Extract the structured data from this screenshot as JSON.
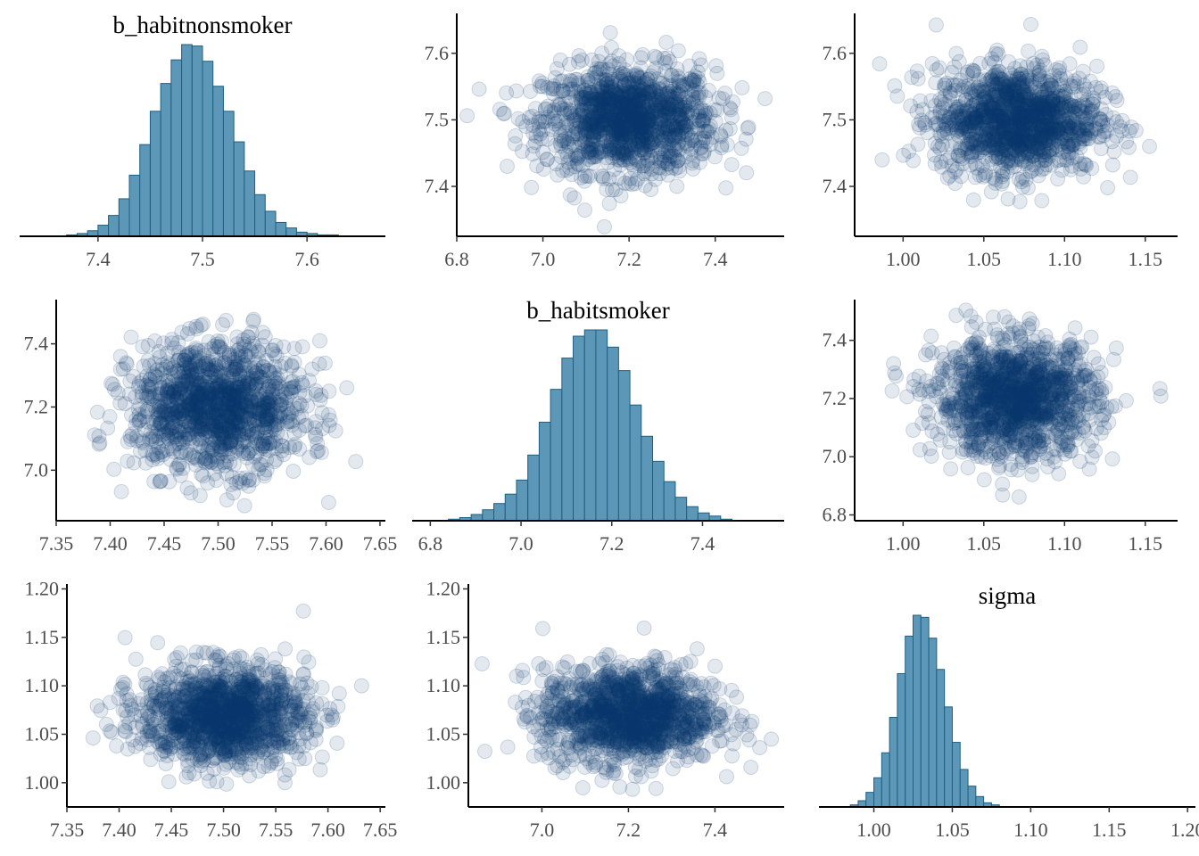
{
  "figure": {
    "type": "pairs_plot",
    "variables": [
      "b_habitnonsmoker",
      "b_habitsmoker",
      "sigma"
    ]
  },
  "colors": {
    "hist_fill": "#5c97b7",
    "hist_edge": "#1f5f82",
    "point": "#0b3b70",
    "axis": "#000000",
    "tick_text": "#4d4d4d"
  },
  "chart_data": [
    {
      "id": "p11",
      "type": "bar",
      "title": "b_habitnonsmoker",
      "xlim": [
        7.325,
        7.675
      ],
      "xticks": [
        "7.4",
        "7.5",
        "7.6"
      ],
      "bin_start": 7.37,
      "bin_width": 0.01,
      "values": [
        1,
        2,
        4,
        8,
        15,
        27,
        44,
        66,
        90,
        110,
        127,
        138,
        137,
        126,
        108,
        90,
        68,
        47,
        30,
        18,
        10,
        6,
        3,
        2,
        1,
        1
      ]
    },
    {
      "id": "p12",
      "type": "scatter",
      "x_var": "b_habitsmoker",
      "y_var": "b_habitnonsmoker",
      "xlim": [
        6.8,
        7.56
      ],
      "ylim": [
        7.325,
        7.66
      ],
      "xticks": [
        "6.8",
        "7.0",
        "7.2",
        "7.4"
      ],
      "yticks": [
        "7.4",
        "7.5",
        "7.6"
      ],
      "center": [
        7.2,
        7.5
      ],
      "sd": [
        0.1,
        0.04
      ]
    },
    {
      "id": "p13",
      "type": "scatter",
      "x_var": "sigma",
      "y_var": "b_habitnonsmoker",
      "xlim": [
        0.97,
        1.17
      ],
      "ylim": [
        7.325,
        7.66
      ],
      "xticks": [
        "1.00",
        "1.05",
        "1.10",
        "1.15"
      ],
      "yticks": [
        "7.4",
        "7.5",
        "7.6"
      ],
      "center": [
        1.07,
        7.5
      ],
      "sd": [
        0.025,
        0.04
      ]
    },
    {
      "id": "p21",
      "type": "scatter",
      "x_var": "b_habitnonsmoker",
      "y_var": "b_habitsmoker",
      "xlim": [
        7.35,
        7.655
      ],
      "ylim": [
        6.84,
        7.54
      ],
      "xticks": [
        "7.35",
        "7.40",
        "7.45",
        "7.50",
        "7.55",
        "7.60",
        "7.65"
      ],
      "yticks": [
        "7.0",
        "7.2",
        "7.4"
      ],
      "center": [
        7.5,
        7.2
      ],
      "sd": [
        0.04,
        0.1
      ]
    },
    {
      "id": "p22",
      "type": "bar",
      "title": "b_habitsmoker",
      "xlim": [
        6.76,
        7.58
      ],
      "xticks": [
        "6.8",
        "7.0",
        "7.2",
        "7.4"
      ],
      "bin_start": 6.84,
      "bin_width": 0.025,
      "values": [
        1,
        2,
        4,
        7,
        11,
        17,
        26,
        42,
        63,
        84,
        104,
        118,
        122,
        122,
        111,
        96,
        74,
        54,
        38,
        25,
        15,
        9,
        5,
        3,
        1
      ]
    },
    {
      "id": "p23",
      "type": "scatter",
      "x_var": "sigma",
      "y_var": "b_habitsmoker",
      "xlim": [
        0.97,
        1.17
      ],
      "ylim": [
        6.78,
        7.54
      ],
      "xticks": [
        "1.00",
        "1.05",
        "1.10",
        "1.15"
      ],
      "yticks": [
        "6.8",
        "7.0",
        "7.2",
        "7.4"
      ],
      "center": [
        1.07,
        7.2
      ],
      "sd": [
        0.025,
        0.1
      ]
    },
    {
      "id": "p31",
      "type": "scatter",
      "x_var": "b_habitnonsmoker",
      "y_var": "sigma",
      "xlim": [
        7.35,
        7.655
      ],
      "ylim": [
        0.975,
        1.205
      ],
      "xticks": [
        "7.35",
        "7.40",
        "7.45",
        "7.50",
        "7.55",
        "7.60",
        "7.65"
      ],
      "yticks": [
        "1.00",
        "1.05",
        "1.10",
        "1.15",
        "1.20"
      ],
      "center": [
        7.5,
        1.07
      ],
      "sd": [
        0.04,
        0.025
      ]
    },
    {
      "id": "p32",
      "type": "scatter",
      "x_var": "b_habitsmoker",
      "y_var": "sigma",
      "xlim": [
        6.83,
        7.56
      ],
      "ylim": [
        0.975,
        1.205
      ],
      "xticks": [
        "7.0",
        "7.2",
        "7.4"
      ],
      "yticks": [
        "1.00",
        "1.05",
        "1.10",
        "1.15",
        "1.20"
      ],
      "center": [
        7.2,
        1.07
      ],
      "sd": [
        0.1,
        0.025
      ]
    },
    {
      "id": "p33",
      "type": "bar",
      "title": "sigma",
      "xlim": [
        0.965,
        1.205
      ],
      "xticks": [
        "1.00",
        "1.05",
        "1.10",
        "1.15",
        "1.20"
      ],
      "bin_start": 0.985,
      "bin_width": 0.005,
      "values": [
        1,
        3,
        7,
        14,
        26,
        43,
        64,
        82,
        92,
        91,
        81,
        66,
        48,
        31,
        18,
        10,
        5,
        2,
        1
      ]
    }
  ]
}
